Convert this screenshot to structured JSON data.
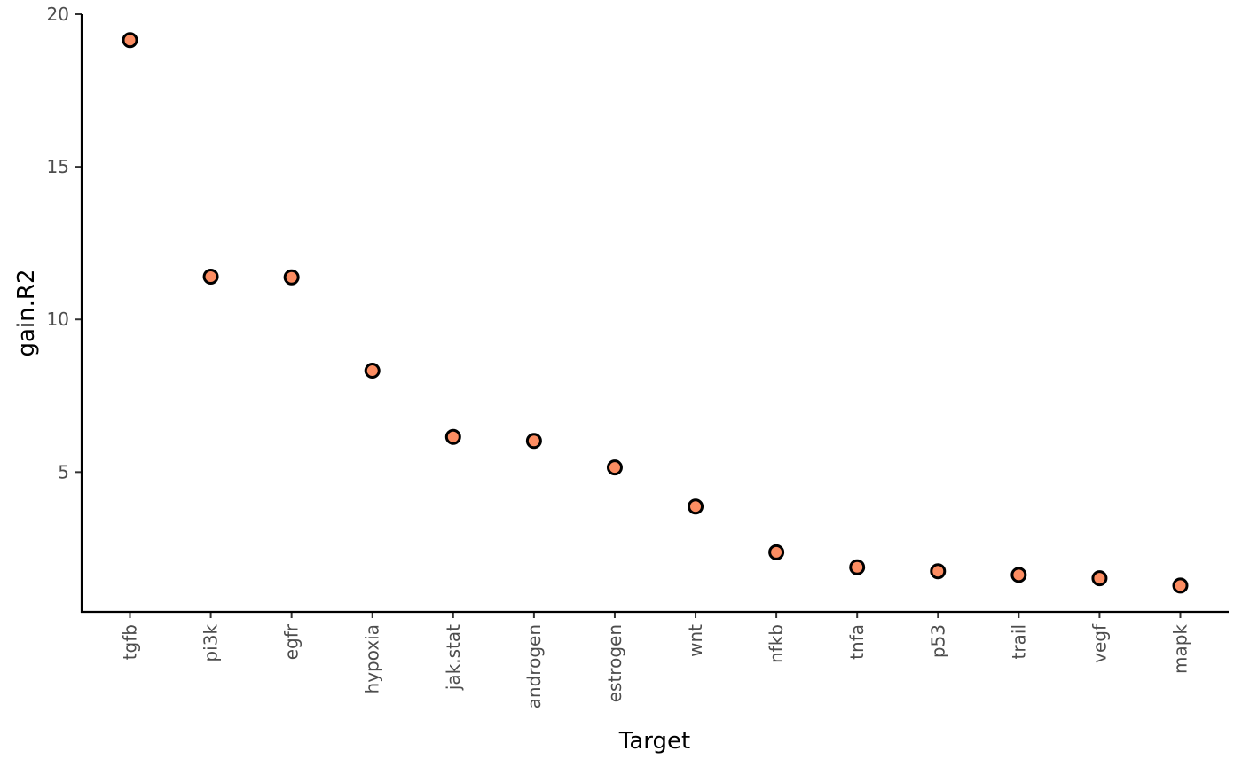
{
  "chart_data": {
    "type": "scatter",
    "xlabel": "Target",
    "ylabel": "gain.R2",
    "categories": [
      "tgfb",
      "pi3k",
      "egfr",
      "hypoxia",
      "jak.stat",
      "androgen",
      "estrogen",
      "wnt",
      "nfkb",
      "tnfa",
      "p53",
      "trail",
      "vegf",
      "mapk"
    ],
    "values": [
      19.15,
      11.4,
      11.38,
      8.32,
      6.15,
      6.02,
      5.15,
      3.87,
      2.37,
      1.88,
      1.75,
      1.63,
      1.52,
      1.28
    ],
    "yticks": [
      5,
      10,
      15,
      20
    ],
    "ylim": [
      0.42,
      20.0
    ],
    "grid": false,
    "legend": "none",
    "point_color": "#fc8d62"
  }
}
